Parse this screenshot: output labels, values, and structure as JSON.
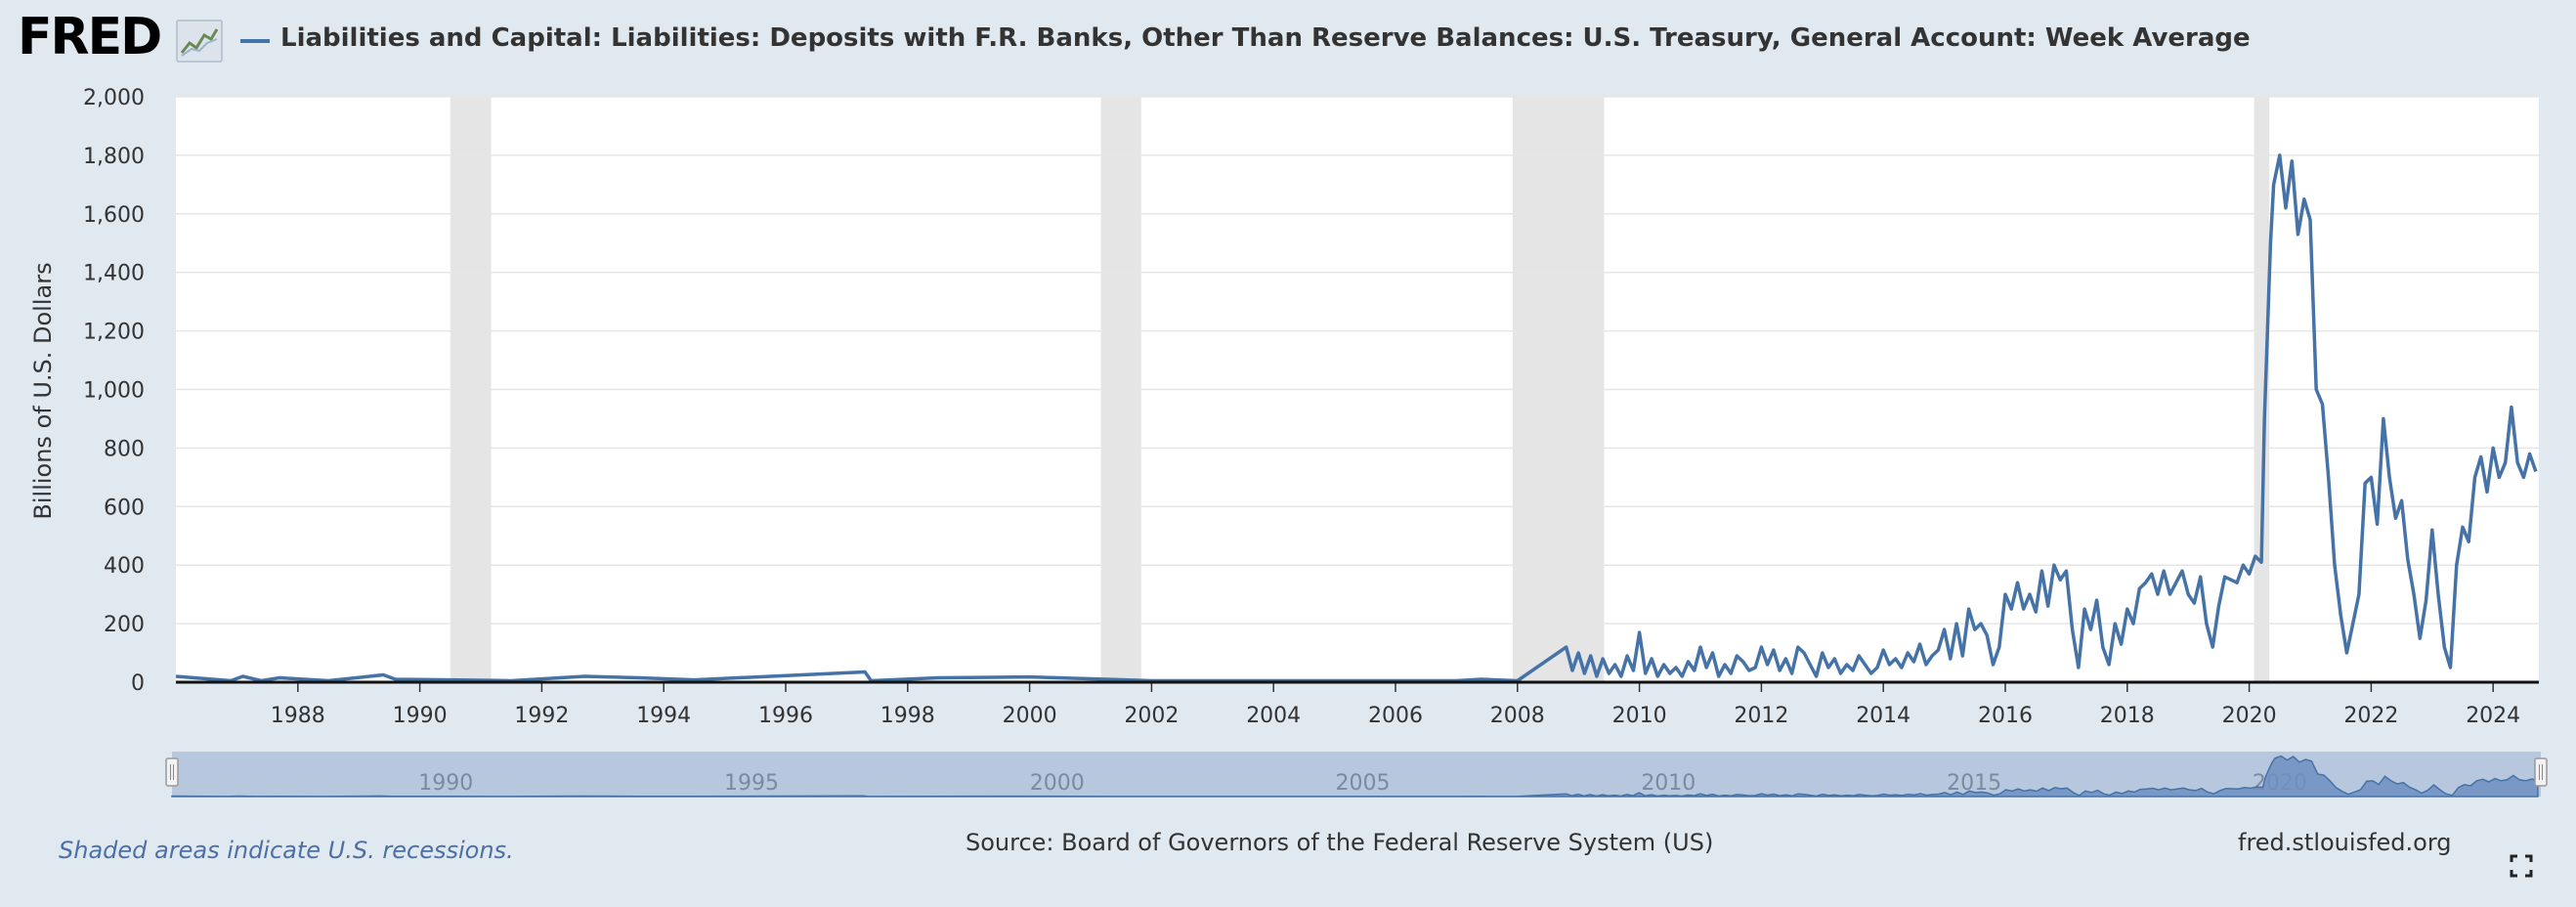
{
  "header": {
    "logo_text": "FRED",
    "logo_icon": "fred-chart-badge-icon",
    "title": "Liabilities and Capital: Liabilities: Deposits with F.R. Banks, Other Than Reserve Balances: U.S. Treasury, General Account: Week Average",
    "series_color": "#4572a7"
  },
  "footer": {
    "recession_note": "Shaded areas indicate U.S. recessions.",
    "source": "Source: Board of Governors of the Federal Reserve System (US)",
    "url": "fred.stlouisfed.org",
    "fullscreen_icon": "fullscreen-icon"
  },
  "navigator": {
    "tick_labels": [
      "1990",
      "1995",
      "2000",
      "2005",
      "2010",
      "2015",
      "2020"
    ]
  },
  "chart_data": {
    "type": "line",
    "title": "Liabilities and Capital: Liabilities: Deposits with F.R. Banks, Other Than Reserve Balances: U.S. Treasury, General Account: Week Average",
    "ylabel": "Billions of U.S. Dollars",
    "xlabel": "",
    "ylim": [
      0,
      2000
    ],
    "xlim": [
      1986.0,
      2024.75
    ],
    "yticks": [
      0,
      200,
      400,
      600,
      800,
      1000,
      1200,
      1400,
      1600,
      1800,
      2000
    ],
    "ytick_labels": [
      "0",
      "200",
      "400",
      "600",
      "800",
      "1,000",
      "1,200",
      "1,400",
      "1,600",
      "1,800",
      "2,000"
    ],
    "xticks": [
      1988,
      1990,
      1992,
      1994,
      1996,
      1998,
      2000,
      2002,
      2004,
      2006,
      2008,
      2010,
      2012,
      2014,
      2016,
      2018,
      2020,
      2022,
      2024
    ],
    "xtick_labels": [
      "1988",
      "1990",
      "1992",
      "1994",
      "1996",
      "1998",
      "2000",
      "2002",
      "2004",
      "2006",
      "2008",
      "2010",
      "2012",
      "2014",
      "2016",
      "2018",
      "2020",
      "2022",
      "2024"
    ],
    "grid": true,
    "line_color": "#4572a7",
    "recession_color": "#e5e5e5",
    "recessions": [
      [
        1990.5,
        1991.17
      ],
      [
        2001.17,
        2001.83
      ],
      [
        2007.92,
        2009.42
      ],
      [
        2020.08,
        2020.33
      ]
    ],
    "x": [
      1986.0,
      1986.9,
      1987.1,
      1987.4,
      1987.7,
      1988.5,
      1989.4,
      1989.6,
      1990.5,
      1991.5,
      1992.7,
      1993.6,
      1994.5,
      1997.3,
      1997.4,
      1998.5,
      2000.0,
      2002.0,
      2005.0,
      2007.0,
      2007.4,
      2008.0,
      2008.8,
      2008.9,
      2009.0,
      2009.1,
      2009.2,
      2009.3,
      2009.4,
      2009.5,
      2009.6,
      2009.7,
      2009.8,
      2009.9,
      2010.0,
      2010.1,
      2010.2,
      2010.3,
      2010.4,
      2010.5,
      2010.6,
      2010.7,
      2010.8,
      2010.9,
      2011.0,
      2011.1,
      2011.2,
      2011.3,
      2011.4,
      2011.5,
      2011.6,
      2011.7,
      2011.8,
      2011.9,
      2012.0,
      2012.1,
      2012.2,
      2012.3,
      2012.4,
      2012.5,
      2012.6,
      2012.7,
      2012.8,
      2012.9,
      2013.0,
      2013.1,
      2013.2,
      2013.3,
      2013.4,
      2013.5,
      2013.6,
      2013.7,
      2013.8,
      2013.9,
      2014.0,
      2014.1,
      2014.2,
      2014.3,
      2014.4,
      2014.5,
      2014.6,
      2014.7,
      2014.8,
      2014.9,
      2015.0,
      2015.1,
      2015.2,
      2015.3,
      2015.4,
      2015.5,
      2015.6,
      2015.7,
      2015.8,
      2015.9,
      2016.0,
      2016.1,
      2016.2,
      2016.3,
      2016.4,
      2016.5,
      2016.6,
      2016.7,
      2016.8,
      2016.9,
      2017.0,
      2017.1,
      2017.2,
      2017.3,
      2017.4,
      2017.5,
      2017.6,
      2017.7,
      2017.8,
      2017.9,
      2018.0,
      2018.1,
      2018.2,
      2018.3,
      2018.4,
      2018.5,
      2018.6,
      2018.7,
      2018.8,
      2018.9,
      2019.0,
      2019.1,
      2019.2,
      2019.3,
      2019.4,
      2019.5,
      2019.6,
      2019.7,
      2019.8,
      2019.9,
      2020.0,
      2020.1,
      2020.2,
      2020.25,
      2020.3,
      2020.35,
      2020.4,
      2020.5,
      2020.6,
      2020.7,
      2020.8,
      2020.9,
      2021.0,
      2021.1,
      2021.2,
      2021.3,
      2021.4,
      2021.5,
      2021.6,
      2021.7,
      2021.8,
      2021.9,
      2022.0,
      2022.1,
      2022.2,
      2022.3,
      2022.4,
      2022.5,
      2022.6,
      2022.7,
      2022.8,
      2022.9,
      2023.0,
      2023.1,
      2023.2,
      2023.3,
      2023.4,
      2023.5,
      2023.6,
      2023.7,
      2023.8,
      2023.9,
      2024.0,
      2024.1,
      2024.2,
      2024.3,
      2024.4,
      2024.5,
      2024.6,
      2024.7
    ],
    "series": [
      {
        "values": [
          20,
          5,
          20,
          5,
          15,
          5,
          25,
          10,
          8,
          5,
          20,
          15,
          8,
          35,
          5,
          15,
          18,
          5,
          5,
          5,
          10,
          5,
          120,
          40,
          100,
          30,
          90,
          20,
          80,
          30,
          60,
          20,
          90,
          40,
          170,
          30,
          80,
          20,
          60,
          30,
          50,
          20,
          70,
          40,
          120,
          50,
          100,
          20,
          60,
          30,
          90,
          70,
          40,
          50,
          120,
          60,
          110,
          40,
          80,
          30,
          120,
          100,
          60,
          20,
          100,
          50,
          80,
          30,
          60,
          40,
          90,
          60,
          30,
          50,
          110,
          60,
          80,
          50,
          100,
          70,
          130,
          60,
          90,
          110,
          180,
          80,
          200,
          90,
          250,
          180,
          200,
          160,
          60,
          120,
          300,
          250,
          340,
          250,
          300,
          240,
          380,
          260,
          400,
          350,
          380,
          180,
          50,
          250,
          180,
          280,
          120,
          60,
          200,
          130,
          250,
          200,
          320,
          340,
          370,
          300,
          380,
          300,
          340,
          380,
          300,
          270,
          360,
          200,
          120,
          260,
          360,
          350,
          340,
          400,
          370,
          430,
          410,
          900,
          1200,
          1500,
          1700,
          1800,
          1620,
          1780,
          1530,
          1650,
          1580,
          1000,
          950,
          700,
          400,
          230,
          100,
          200,
          300,
          680,
          700,
          540,
          900,
          700,
          560,
          620,
          420,
          300,
          150,
          280,
          520,
          300,
          120,
          50,
          400,
          530,
          480,
          700,
          770,
          650,
          800,
          700,
          750,
          940,
          750,
          700,
          780,
          720
        ]
      }
    ]
  }
}
